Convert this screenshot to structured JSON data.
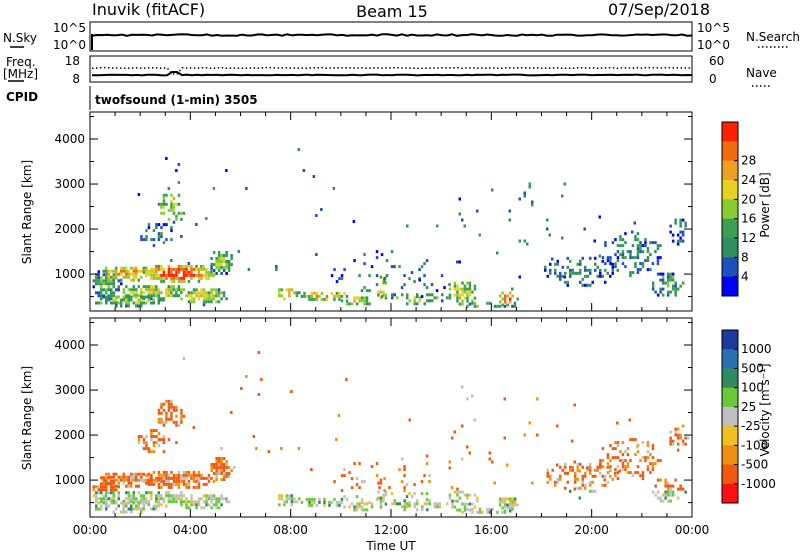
{
  "header": {
    "station": "Inuvik (fitACF)",
    "beam": "Beam 15",
    "date": "07/Sep/2018"
  },
  "strip_panels": {
    "nsky": {
      "left_label": "N.Sky",
      "left_ticks": [
        "10^5",
        "10^0"
      ],
      "right_label": "N.Search",
      "right_ticks": [
        "10^5",
        "10^0"
      ]
    },
    "freq": {
      "left_label_1": "Freq.",
      "left_label_2": "[MHz]",
      "left_ticks": [
        "18",
        "8"
      ],
      "right_label": "Nave",
      "right_ticks": [
        "60",
        "0"
      ]
    },
    "cpid": {
      "label": "CPID",
      "text": "twofsound (1-min) 3505"
    }
  },
  "chart_data": [
    {
      "type": "heatmap",
      "name": "power",
      "title": "",
      "xlabel": "",
      "ylabel": "Slant Range [km]",
      "x_ticks": [
        "00:00",
        "04:00",
        "08:00",
        "12:00",
        "16:00",
        "20:00",
        "00:00"
      ],
      "xlim_hours": [
        0,
        24
      ],
      "y_ticks": [
        1000,
        2000,
        3000,
        4000
      ],
      "ylim_km": [
        180,
        4600
      ],
      "colorbar": {
        "label": "Power [dB]",
        "ticks": [
          "4",
          "8",
          "12",
          "16",
          "20",
          "24",
          "28"
        ],
        "colors": [
          "#0000ff",
          "#2050c0",
          "#2f8f5f",
          "#3aa050",
          "#88cc33",
          "#e8d020",
          "#f0a020",
          "#f06a10",
          "#ff2000"
        ]
      }
    },
    {
      "type": "heatmap",
      "name": "velocity",
      "title": "",
      "xlabel": "Time UT",
      "ylabel": "Slant Range [km]",
      "x_ticks": [
        "00:00",
        "04:00",
        "08:00",
        "12:00",
        "16:00",
        "20:00",
        "00:00"
      ],
      "xlim_hours": [
        0,
        24
      ],
      "y_ticks": [
        1000,
        2000,
        3000,
        4000
      ],
      "ylim_km": [
        180,
        4600
      ],
      "colorbar": {
        "label": "Velocity [m s⁻¹]",
        "ticks": [
          "1000",
          "500",
          "100",
          "25",
          "-25",
          "-100",
          "-500",
          "-1000"
        ],
        "colors": [
          "#1a3aa0",
          "#2b6fb0",
          "#2f8a5f",
          "#6ac93a",
          "#c0c0c0",
          "#f0c020",
          "#f09010",
          "#f05a10",
          "#ff1010"
        ]
      }
    }
  ]
}
